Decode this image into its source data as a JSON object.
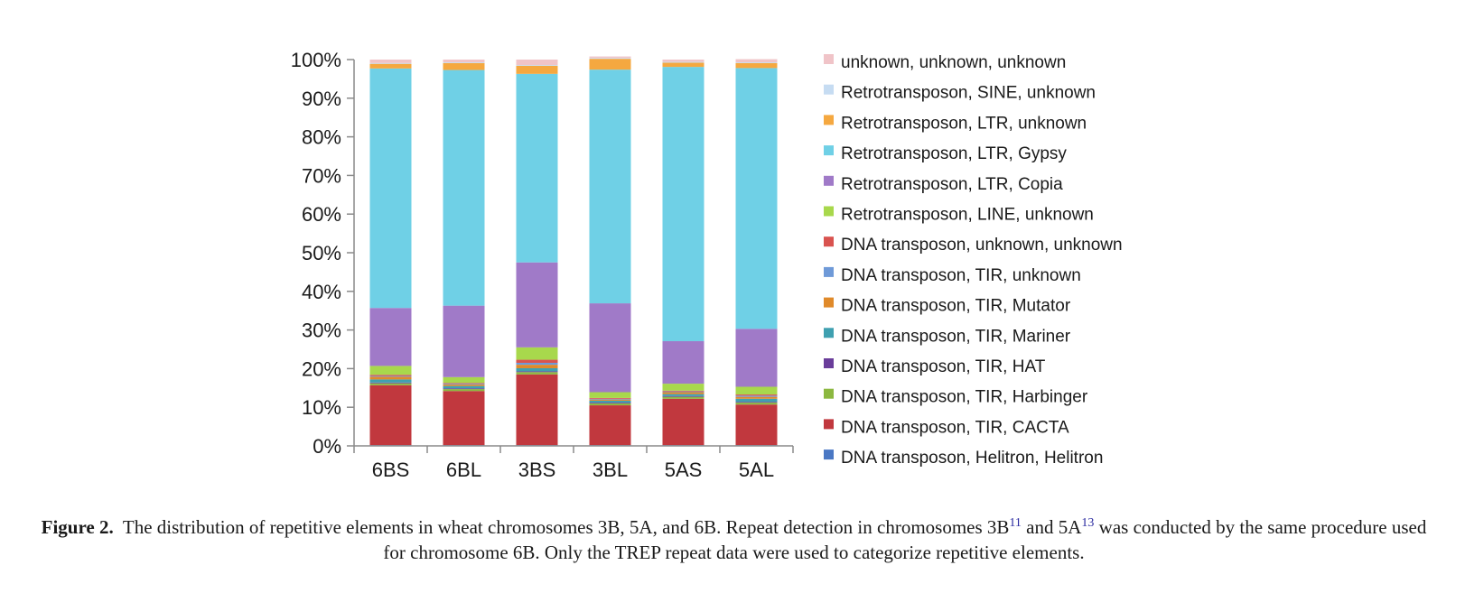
{
  "chart_data": {
    "type": "bar",
    "stacked": true,
    "categories": [
      "6BS",
      "6BL",
      "3BS",
      "3BL",
      "5AS",
      "5AL"
    ],
    "yticks": [
      "0%",
      "10%",
      "20%",
      "30%",
      "40%",
      "50%",
      "60%",
      "70%",
      "80%",
      "90%",
      "100%"
    ],
    "ylim": [
      0,
      100
    ],
    "legend_position": "right",
    "series": [
      {
        "name": "DNA transposon, Helitron, Helitron",
        "color": "#4a78c4",
        "values": [
          0.2,
          0.2,
          0.2,
          0.2,
          0.2,
          0.2
        ]
      },
      {
        "name": "DNA transposon, TIR, CACTA",
        "color": "#c1383e",
        "values": [
          15.5,
          14.0,
          18.3,
          10.3,
          12.0,
          10.5
        ]
      },
      {
        "name": "DNA transposon, TIR, Harbinger",
        "color": "#8cb840",
        "values": [
          0.5,
          0.5,
          0.6,
          0.5,
          0.5,
          0.5
        ]
      },
      {
        "name": "DNA transposon, TIR, HAT",
        "color": "#6a3d9a",
        "values": [
          0.2,
          0.2,
          0.2,
          0.2,
          0.2,
          0.2
        ]
      },
      {
        "name": "DNA transposon, TIR, Mariner",
        "color": "#3fa0b0",
        "values": [
          0.8,
          0.6,
          0.8,
          0.5,
          0.5,
          0.8
        ]
      },
      {
        "name": "DNA transposon, TIR, Mutator",
        "color": "#e08a2a",
        "values": [
          0.7,
          0.4,
          0.9,
          0.3,
          0.5,
          0.5
        ]
      },
      {
        "name": "DNA transposon, TIR, unknown",
        "color": "#6f9ad8",
        "values": [
          0.2,
          0.2,
          0.5,
          0.2,
          0.2,
          0.3
        ]
      },
      {
        "name": "DNA transposon, unknown, unknown",
        "color": "#d9534f",
        "values": [
          0.3,
          0.2,
          0.8,
          0.2,
          0.2,
          0.3
        ]
      },
      {
        "name": "Retrotransposon, LINE, unknown",
        "color": "#a8d84c",
        "values": [
          2.3,
          1.5,
          3.2,
          1.5,
          1.8,
          2.0
        ]
      },
      {
        "name": "Retrotransposon, LTR, Copia",
        "color": "#a07ac8",
        "values": [
          15.0,
          18.5,
          22.0,
          23.0,
          11.0,
          15.0
        ]
      },
      {
        "name": "Retrotransposon, LTR, Gypsy",
        "color": "#6fd0e6",
        "values": [
          62.0,
          61.0,
          48.8,
          60.5,
          71.0,
          67.5
        ]
      },
      {
        "name": "Retrotransposon, LTR, unknown",
        "color": "#f5a840",
        "values": [
          1.2,
          1.8,
          2.1,
          2.8,
          1.1,
          1.3
        ]
      },
      {
        "name": "Retrotransposon, SINE, unknown",
        "color": "#c6dcf2",
        "values": [
          0.2,
          0.2,
          0.2,
          0.2,
          0.2,
          0.2
        ]
      },
      {
        "name": "unknown, unknown, unknown",
        "color": "#f0c4c8",
        "values": [
          0.9,
          0.7,
          1.4,
          0.4,
          0.6,
          0.8
        ]
      }
    ]
  },
  "caption": {
    "label": "Figure 2.",
    "text_part1": "The distribution of repetitive elements in wheat chromosomes 3B, 5A, and 6B. Repeat detection in chromosomes 3B",
    "ref1": "11",
    "text_part2": "and 5A",
    "ref2": "13",
    "text_part3": "was conducted by the same procedure used for chromosome 6B. Only the TREP repeat data were used to categorize repetitive elements."
  }
}
